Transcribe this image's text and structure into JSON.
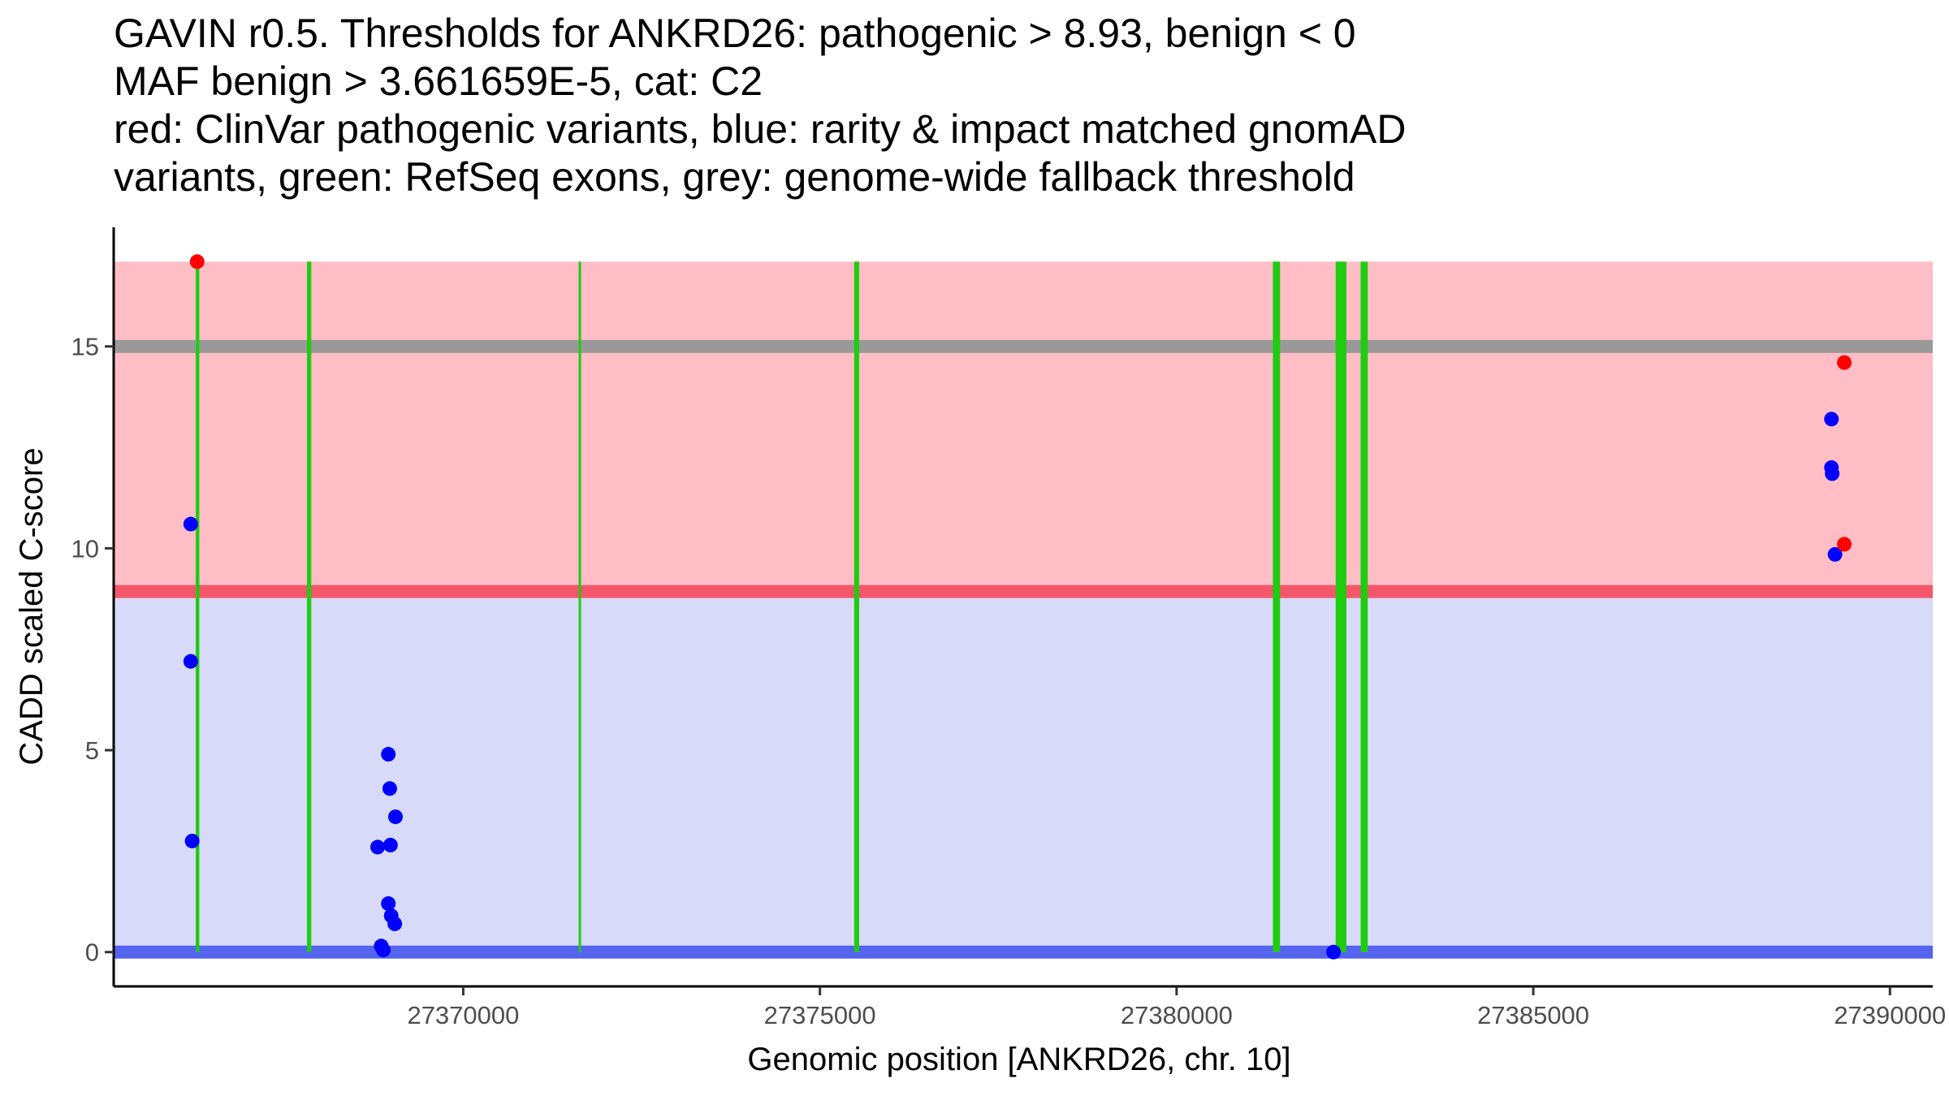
{
  "chart_data": {
    "type": "scatter",
    "title_lines": [
      "GAVIN r0.5. Thresholds for ANKRD26: pathogenic > 8.93, benign < 0",
      "MAF benign > 3.661659E-5, cat: C2",
      "red: ClinVar pathogenic variants, blue: rarity & impact matched gnomAD",
      "variants, green: RefSeq exons, grey: genome-wide fallback threshold"
    ],
    "xlabel": "Genomic position [ANKRD26, chr. 10]",
    "ylabel": "CADD scaled C-score",
    "xlim": [
      27365100,
      27390600
    ],
    "ylim": [
      -0.85,
      17.95
    ],
    "x_ticks": [
      27370000,
      27375000,
      27380000,
      27385000,
      27390000
    ],
    "y_ticks": [
      0,
      5,
      10,
      15
    ],
    "grid": false,
    "legend": "none",
    "colors": {
      "pathogenic_band": "#ffbec5",
      "benign_band": "#d8daf9",
      "pathogenic_threshold": "#f4566a",
      "benign_threshold": "#5464ef",
      "genome_wide_threshold": "#999999",
      "exon": "#1fcc10",
      "clinvar_point": "#ff0000",
      "gnomad_point": "#0000ff"
    },
    "bands": [
      {
        "name": "pathogenic",
        "y_from": 8.93,
        "y_to": 17.1
      },
      {
        "name": "benign",
        "y_from": 0,
        "y_to": 8.93
      }
    ],
    "threshold_lines": [
      {
        "name": "genome-wide fallback threshold",
        "y": 15
      },
      {
        "name": "pathogenic threshold",
        "y": 8.93
      },
      {
        "name": "benign threshold",
        "y": 0
      }
    ],
    "exons": [
      {
        "start": 27366250,
        "end": 27366300
      },
      {
        "start": 27367810,
        "end": 27367870
      },
      {
        "start": 27371620,
        "end": 27371650
      },
      {
        "start": 27375480,
        "end": 27375550
      },
      {
        "start": 27381350,
        "end": 27381450
      },
      {
        "start": 27382230,
        "end": 27382380
      },
      {
        "start": 27382580,
        "end": 27382680
      }
    ],
    "series": [
      {
        "name": "ClinVar pathogenic variants",
        "points": [
          {
            "x": 27366270,
            "y": 17.1
          },
          {
            "x": 27389360,
            "y": 14.6
          },
          {
            "x": 27389360,
            "y": 10.1
          }
        ]
      },
      {
        "name": "rarity & impact matched gnomAD variants",
        "points": [
          {
            "x": 27366180,
            "y": 10.6
          },
          {
            "x": 27366180,
            "y": 7.2
          },
          {
            "x": 27366200,
            "y": 2.75
          },
          {
            "x": 27368950,
            "y": 4.9
          },
          {
            "x": 27368970,
            "y": 4.05
          },
          {
            "x": 27369050,
            "y": 3.35
          },
          {
            "x": 27368800,
            "y": 2.6
          },
          {
            "x": 27368980,
            "y": 2.65
          },
          {
            "x": 27368950,
            "y": 1.2
          },
          {
            "x": 27368990,
            "y": 0.9
          },
          {
            "x": 27369040,
            "y": 0.7
          },
          {
            "x": 27368850,
            "y": 0.15
          },
          {
            "x": 27368880,
            "y": 0.05
          },
          {
            "x": 27382200,
            "y": 0.0
          },
          {
            "x": 27389180,
            "y": 13.2
          },
          {
            "x": 27389180,
            "y": 12.0
          },
          {
            "x": 27389190,
            "y": 11.85
          },
          {
            "x": 27389230,
            "y": 9.85
          }
        ]
      }
    ]
  }
}
